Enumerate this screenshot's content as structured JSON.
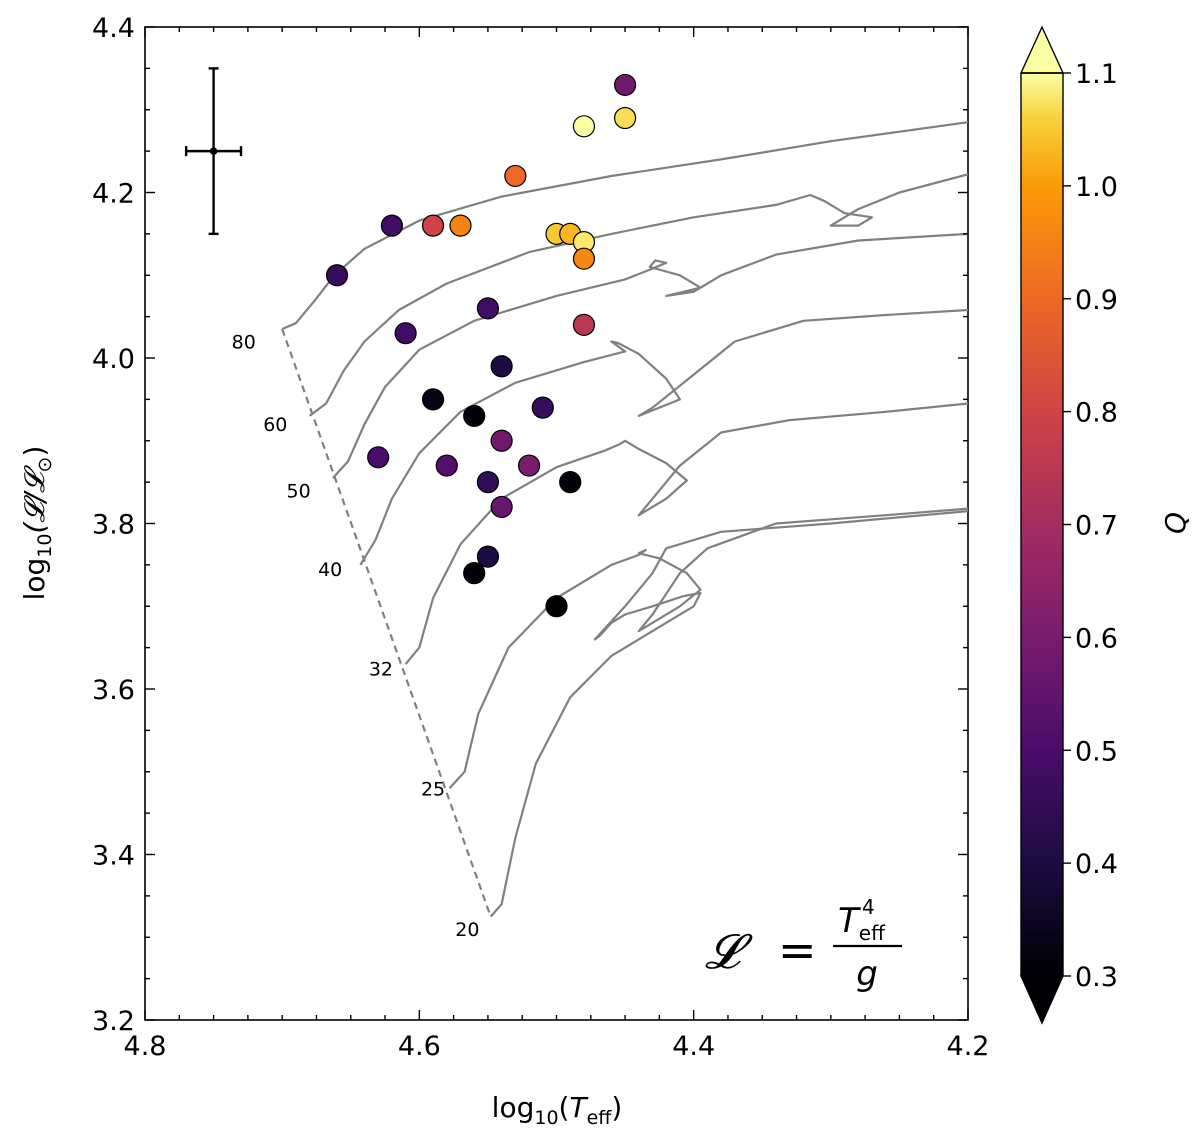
{
  "chart_data": {
    "type": "scatter",
    "xlabel_parts": {
      "base": "log",
      "sub": "10",
      "open": "(",
      "var": "T",
      "var_sub": "eff",
      "close": ")"
    },
    "ylabel_parts": {
      "base": "log",
      "sub": "10",
      "rest": "(𝓛/𝓛",
      "sun": "⊙",
      "close": ")"
    },
    "xlim": [
      4.8,
      4.2
    ],
    "ylim": [
      3.2,
      4.4
    ],
    "x_ticks": [
      {
        "value": 4.8,
        "label": "4.8"
      },
      {
        "value": 4.6,
        "label": "4.6"
      },
      {
        "value": 4.4,
        "label": "4.4"
      },
      {
        "value": 4.2,
        "label": "4.2"
      }
    ],
    "y_ticks": [
      {
        "value": 3.2,
        "label": "3.2"
      },
      {
        "value": 3.4,
        "label": "3.4"
      },
      {
        "value": 3.6,
        "label": "3.6"
      },
      {
        "value": 3.8,
        "label": "3.8"
      },
      {
        "value": 4.0,
        "label": "4.0"
      },
      {
        "value": 4.2,
        "label": "4.2"
      },
      {
        "value": 4.4,
        "label": "4.4"
      }
    ],
    "colorbar": {
      "label": "Q",
      "range": [
        0.3,
        1.1
      ],
      "colormap": "inferno",
      "extend": "both",
      "ticks": [
        {
          "value": 0.3,
          "label": "0.3"
        },
        {
          "value": 0.4,
          "label": "0.4"
        },
        {
          "value": 0.5,
          "label": "0.5"
        },
        {
          "value": 0.6,
          "label": "0.6"
        },
        {
          "value": 0.7,
          "label": "0.7"
        },
        {
          "value": 0.8,
          "label": "0.8"
        },
        {
          "value": 0.9,
          "label": "0.9"
        },
        {
          "value": 1.0,
          "label": "1.0"
        },
        {
          "value": 1.1,
          "label": "1.1"
        }
      ]
    },
    "error_bar": {
      "x": 4.75,
      "y": 4.25,
      "xerr": 0.02,
      "yerr": 0.1
    },
    "formula": {
      "lhs": "𝓛",
      "eq": "=",
      "num": "T",
      "num_sup": "4",
      "num_sub": "eff",
      "den": "g"
    },
    "points": [
      {
        "x": 4.45,
        "y": 4.33,
        "q": 0.58
      },
      {
        "x": 4.45,
        "y": 4.29,
        "q": 1.07
      },
      {
        "x": 4.48,
        "y": 4.28,
        "q": 1.1
      },
      {
        "x": 4.53,
        "y": 4.22,
        "q": 0.9
      },
      {
        "x": 4.57,
        "y": 4.16,
        "q": 0.95
      },
      {
        "x": 4.59,
        "y": 4.16,
        "q": 0.8
      },
      {
        "x": 4.62,
        "y": 4.16,
        "q": 0.48
      },
      {
        "x": 4.5,
        "y": 4.15,
        "q": 1.05
      },
      {
        "x": 4.49,
        "y": 4.15,
        "q": 1.03
      },
      {
        "x": 4.48,
        "y": 4.14,
        "q": 1.08
      },
      {
        "x": 4.48,
        "y": 4.12,
        "q": 0.96
      },
      {
        "x": 4.66,
        "y": 4.1,
        "q": 0.46
      },
      {
        "x": 4.55,
        "y": 4.06,
        "q": 0.48
      },
      {
        "x": 4.48,
        "y": 4.04,
        "q": 0.75
      },
      {
        "x": 4.61,
        "y": 4.03,
        "q": 0.48
      },
      {
        "x": 4.54,
        "y": 3.99,
        "q": 0.4
      },
      {
        "x": 4.59,
        "y": 3.95,
        "q": 0.33
      },
      {
        "x": 4.51,
        "y": 3.94,
        "q": 0.46
      },
      {
        "x": 4.56,
        "y": 3.93,
        "q": 0.31
      },
      {
        "x": 4.54,
        "y": 3.9,
        "q": 0.58
      },
      {
        "x": 4.63,
        "y": 3.88,
        "q": 0.5
      },
      {
        "x": 4.58,
        "y": 3.87,
        "q": 0.52
      },
      {
        "x": 4.52,
        "y": 3.87,
        "q": 0.6
      },
      {
        "x": 4.55,
        "y": 3.85,
        "q": 0.45
      },
      {
        "x": 4.49,
        "y": 3.85,
        "q": 0.31
      },
      {
        "x": 4.54,
        "y": 3.82,
        "q": 0.56
      },
      {
        "x": 4.55,
        "y": 3.76,
        "q": 0.4
      },
      {
        "x": 4.56,
        "y": 3.74,
        "q": 0.31
      },
      {
        "x": 4.5,
        "y": 3.7,
        "q": 0.3
      }
    ],
    "zams_line": [
      [
        4.7,
        4.035
      ],
      [
        4.548,
        3.325
      ]
    ],
    "tracks": [
      {
        "label": "80",
        "label_pos": [
          4.728,
          4.02
        ],
        "points": [
          [
            4.7,
            4.035
          ],
          [
            4.69,
            4.042
          ],
          [
            4.676,
            4.07
          ],
          [
            4.662,
            4.1
          ],
          [
            4.64,
            4.132
          ],
          [
            4.6,
            4.166
          ],
          [
            4.54,
            4.195
          ],
          [
            4.46,
            4.22
          ],
          [
            4.38,
            4.24
          ],
          [
            4.3,
            4.262
          ],
          [
            4.2,
            4.285
          ]
        ]
      },
      {
        "label": "60",
        "label_pos": [
          4.705,
          3.92
        ],
        "points": [
          [
            4.68,
            3.93
          ],
          [
            4.668,
            3.945
          ],
          [
            4.655,
            3.985
          ],
          [
            4.64,
            4.02
          ],
          [
            4.615,
            4.058
          ],
          [
            4.58,
            4.09
          ],
          [
            4.52,
            4.128
          ],
          [
            4.46,
            4.15
          ],
          [
            4.4,
            4.17
          ],
          [
            4.34,
            4.185
          ],
          [
            4.315,
            4.197
          ],
          [
            4.305,
            4.19
          ],
          [
            4.29,
            4.175
          ],
          [
            4.27,
            4.17
          ],
          [
            4.28,
            4.16
          ],
          [
            4.3,
            4.16
          ],
          [
            4.28,
            4.18
          ],
          [
            4.25,
            4.2
          ],
          [
            4.2,
            4.222
          ]
        ]
      },
      {
        "label": "50",
        "label_pos": [
          4.688,
          3.84
        ],
        "points": [
          [
            4.663,
            3.855
          ],
          [
            4.652,
            3.875
          ],
          [
            4.64,
            3.92
          ],
          [
            4.625,
            3.965
          ],
          [
            4.6,
            4.01
          ],
          [
            4.56,
            4.045
          ],
          [
            4.5,
            4.075
          ],
          [
            4.45,
            4.095
          ],
          [
            4.43,
            4.108
          ],
          [
            4.42,
            4.115
          ],
          [
            4.428,
            4.118
          ],
          [
            4.432,
            4.11
          ],
          [
            4.41,
            4.1
          ],
          [
            4.395,
            4.085
          ],
          [
            4.42,
            4.075
          ],
          [
            4.4,
            4.08
          ],
          [
            4.38,
            4.1
          ],
          [
            4.34,
            4.125
          ],
          [
            4.28,
            4.142
          ],
          [
            4.2,
            4.15
          ]
        ]
      },
      {
        "label": "40",
        "label_pos": [
          4.665,
          3.745
        ],
        "points": [
          [
            4.643,
            3.75
          ],
          [
            4.632,
            3.78
          ],
          [
            4.62,
            3.83
          ],
          [
            4.6,
            3.885
          ],
          [
            4.57,
            3.935
          ],
          [
            4.53,
            3.97
          ],
          [
            4.48,
            3.995
          ],
          [
            4.45,
            4.008
          ],
          [
            4.46,
            4.02
          ],
          [
            4.455,
            4.018
          ],
          [
            4.44,
            4.005
          ],
          [
            4.42,
            3.975
          ],
          [
            4.41,
            3.95
          ],
          [
            4.44,
            3.93
          ],
          [
            4.43,
            3.94
          ],
          [
            4.4,
            3.98
          ],
          [
            4.37,
            4.02
          ],
          [
            4.32,
            4.045
          ],
          [
            4.26,
            4.052
          ],
          [
            4.2,
            4.058
          ]
        ]
      },
      {
        "label": "32",
        "label_pos": [
          4.628,
          3.625
        ],
        "points": [
          [
            4.61,
            3.63
          ],
          [
            4.6,
            3.65
          ],
          [
            4.59,
            3.71
          ],
          [
            4.57,
            3.775
          ],
          [
            4.54,
            3.83
          ],
          [
            4.5,
            3.868
          ],
          [
            4.465,
            3.888
          ],
          [
            4.455,
            3.895
          ],
          [
            4.45,
            3.9
          ],
          [
            4.44,
            3.89
          ],
          [
            4.42,
            3.873
          ],
          [
            4.405,
            3.852
          ],
          [
            4.42,
            3.83
          ],
          [
            4.44,
            3.81
          ],
          [
            4.43,
            3.83
          ],
          [
            4.41,
            3.87
          ],
          [
            4.38,
            3.91
          ],
          [
            4.33,
            3.925
          ],
          [
            4.26,
            3.935
          ],
          [
            4.2,
            3.945
          ]
        ]
      },
      {
        "label": "25",
        "label_pos": [
          4.59,
          3.48
        ],
        "points": [
          [
            4.578,
            3.48
          ],
          [
            4.567,
            3.5
          ],
          [
            4.557,
            3.57
          ],
          [
            4.535,
            3.65
          ],
          [
            4.5,
            3.71
          ],
          [
            4.46,
            3.75
          ],
          [
            4.44,
            3.762
          ],
          [
            4.435,
            3.768
          ],
          [
            4.44,
            3.764
          ],
          [
            4.425,
            3.758
          ],
          [
            4.405,
            3.74
          ],
          [
            4.395,
            3.72
          ],
          [
            4.41,
            3.7
          ],
          [
            4.43,
            3.68
          ],
          [
            4.44,
            3.67
          ],
          [
            4.43,
            3.69
          ],
          [
            4.41,
            3.74
          ],
          [
            4.39,
            3.77
          ],
          [
            4.34,
            3.8
          ],
          [
            4.26,
            3.81
          ],
          [
            4.2,
            3.818
          ]
        ]
      },
      {
        "label": "20",
        "label_pos": [
          4.565,
          3.31
        ],
        "points": [
          [
            4.548,
            3.325
          ],
          [
            4.54,
            3.34
          ],
          [
            4.53,
            3.42
          ],
          [
            4.515,
            3.51
          ],
          [
            4.49,
            3.59
          ],
          [
            4.46,
            3.64
          ],
          [
            4.42,
            3.68
          ],
          [
            4.4,
            3.7
          ],
          [
            4.395,
            3.716
          ],
          [
            4.408,
            3.712
          ],
          [
            4.43,
            3.7
          ],
          [
            4.45,
            3.69
          ],
          [
            4.46,
            3.68
          ],
          [
            4.468,
            3.665
          ],
          [
            4.472,
            3.66
          ],
          [
            4.45,
            3.7
          ],
          [
            4.43,
            3.74
          ],
          [
            4.42,
            3.77
          ],
          [
            4.38,
            3.79
          ],
          [
            4.3,
            3.8
          ],
          [
            4.2,
            3.815
          ]
        ]
      }
    ]
  }
}
